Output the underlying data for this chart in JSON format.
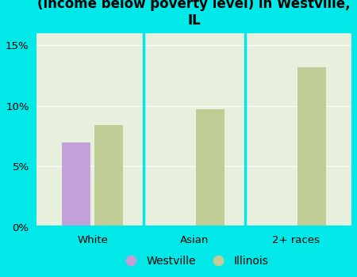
{
  "title": "Breakdown of poor residents within races\n(income below poverty level) in Westville,\nIL",
  "categories": [
    "White",
    "Asian",
    "2+ races"
  ],
  "westville_values": [
    7.0,
    null,
    null
  ],
  "illinois_values": [
    8.4,
    9.7,
    13.2
  ],
  "westville_color": "#c2a0d8",
  "illinois_color": "#bfcc96",
  "background_outer": "#00e8e8",
  "background_inner": "#e6f0dc",
  "ylim": [
    0,
    0.16
  ],
  "yticks": [
    0,
    0.05,
    0.1,
    0.15
  ],
  "yticklabels": [
    "0%",
    "5%",
    "10%",
    "15%"
  ],
  "bar_width": 0.28,
  "title_fontsize": 12,
  "tick_fontsize": 9.5,
  "legend_fontsize": 10
}
